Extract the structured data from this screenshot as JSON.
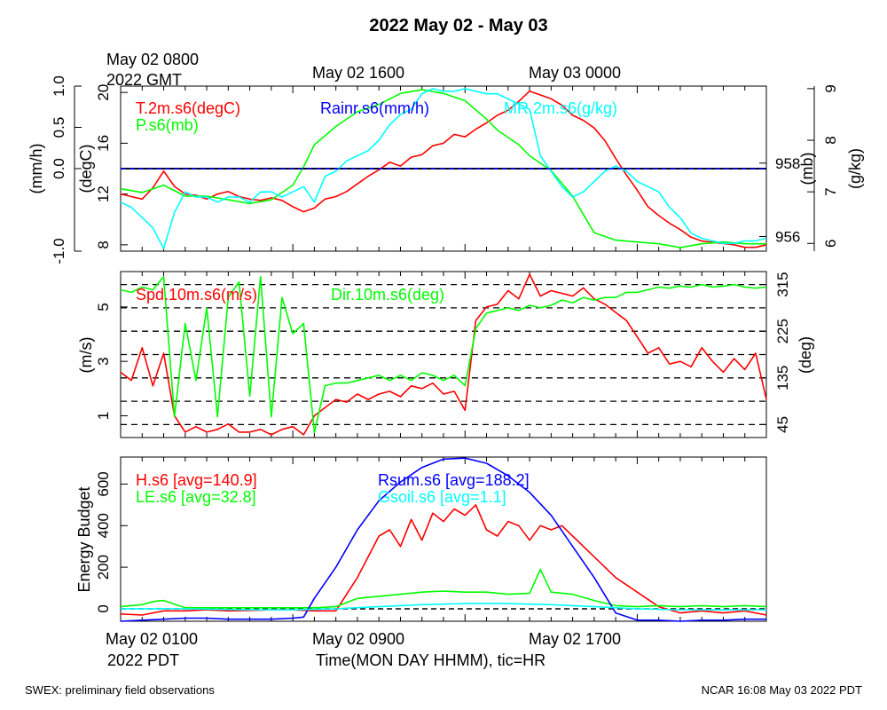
{
  "title": "2022 May 02 - May 03",
  "footer": {
    "left": "SWEX: preliminary field observations",
    "right": "NCAR 16:08 May 03 2022 PDT"
  },
  "time_axis": {
    "gmt_start_line1": "May 02 0800",
    "gmt_start_line2": "2022 GMT",
    "gmt_labels": [
      "May 02 1600",
      "May 03 0000"
    ],
    "pdt_labels": [
      "May 02 0100",
      "May 02 0900",
      "May 02 1700"
    ],
    "pdt_year": "2022 PDT",
    "xlabel": "Time(MON DAY HHMM), tic=HR"
  },
  "colors": {
    "red": "#ff0000",
    "green": "#00ff00",
    "blue": "#0000ff",
    "cyan": "#00ffff",
    "black": "#000000"
  },
  "chart_data": [
    {
      "type": "line",
      "panel": "top",
      "x_unit": "hours since May 02 0100 PDT",
      "xlim": [
        0,
        30
      ],
      "axes": {
        "rain": {
          "label": "(mm/h)",
          "lim": [
            -1.0,
            1.0
          ],
          "ticks": [
            "1.0",
            "0.5",
            "0.0",
            "-1.0"
          ],
          "tick_values": [
            1.0,
            0.5,
            0.0,
            -1.0
          ]
        },
        "temp": {
          "label": "(degC)",
          "lim": [
            7.5,
            20.5
          ],
          "ticks": [
            "20",
            "16",
            "12",
            "8"
          ],
          "tick_values": [
            20,
            16,
            12,
            8
          ]
        },
        "pres": {
          "label": "(mb)",
          "lim": [
            955.6,
            960.1
          ],
          "ticks": [
            "958",
            "956"
          ],
          "tick_values": [
            958,
            956
          ]
        },
        "mr": {
          "label": "(g/kg)",
          "lim": [
            5.85,
            9.05
          ],
          "ticks": [
            "9",
            "8",
            "7",
            "6"
          ],
          "tick_values": [
            9,
            8,
            7,
            6
          ]
        }
      },
      "series": [
        {
          "name": "T.2m.s6(degC)",
          "color": "red",
          "axis": "temp",
          "x": [
            0,
            0.5,
            1,
            1.5,
            2,
            2.5,
            3,
            3.5,
            4,
            4.5,
            5,
            5.5,
            6,
            6.5,
            7,
            7.5,
            8,
            8.5,
            9,
            9.5,
            10,
            10.5,
            11,
            11.5,
            12,
            12.5,
            13,
            13.5,
            14,
            14.5,
            15,
            15.5,
            16,
            16.5,
            17,
            17.5,
            18,
            18.5,
            19,
            19.5,
            20,
            20.5,
            21,
            21.5,
            22,
            22.5,
            23,
            23.5,
            24,
            24.5,
            25,
            25.5,
            26,
            26.5,
            27,
            27.5,
            28,
            28.5,
            29,
            29.5,
            30
          ],
          "y": [
            12,
            11.8,
            11.6,
            12.5,
            13.8,
            12.6,
            12,
            11.9,
            11.6,
            12,
            12.2,
            11.8,
            11.6,
            11.5,
            11.7,
            11.5,
            11.0,
            10.6,
            10.9,
            11.6,
            11.8,
            12.2,
            12.8,
            13.4,
            13.9,
            14.5,
            14.2,
            14.9,
            15.1,
            15.8,
            16.0,
            16.7,
            16.5,
            17.1,
            17.6,
            18.2,
            18.6,
            19.3,
            20.1,
            19.8,
            19.5,
            19.0,
            18.2,
            17.8,
            17.2,
            16.2,
            14.8,
            13.5,
            12.3,
            11.0,
            10.3,
            9.7,
            9.2,
            8.6,
            8.3,
            8.2,
            8.1,
            8.0,
            7.8,
            7.8,
            8.0
          ]
        },
        {
          "name": "P.s6(mb)",
          "color": "green",
          "axis": "pres",
          "x": [
            0,
            1,
            2,
            3,
            4,
            5,
            6,
            7,
            8,
            8.5,
            9,
            10,
            11,
            12,
            13,
            14,
            15,
            16,
            17,
            17.5,
            18,
            18.5,
            19,
            20,
            21,
            21.5,
            22,
            23,
            24,
            25,
            26,
            27,
            28,
            29,
            30
          ],
          "y": [
            957.3,
            957.2,
            957.4,
            957.1,
            957.1,
            957.0,
            956.9,
            957.0,
            957.4,
            957.9,
            958.5,
            959.0,
            959.4,
            959.6,
            959.9,
            960.0,
            959.9,
            959.7,
            959.2,
            958.9,
            958.7,
            958.5,
            958.2,
            957.8,
            957.1,
            956.6,
            956.1,
            955.9,
            955.85,
            955.8,
            955.7,
            955.8,
            955.85,
            955.8,
            955.8
          ]
        },
        {
          "name": "MR.2m.s6(g/kg)",
          "color": "cyan",
          "axis": "mr",
          "x": [
            0,
            0.5,
            1,
            1.5,
            2,
            2.5,
            3,
            3.5,
            4,
            4.5,
            5,
            5.5,
            6,
            6.5,
            7,
            7.5,
            8,
            8.5,
            9,
            9.5,
            10,
            10.5,
            11,
            11.5,
            12,
            12.5,
            13,
            13.5,
            14,
            14.5,
            15,
            15.5,
            16,
            16.5,
            17,
            17.5,
            18,
            18.5,
            19,
            19.5,
            20,
            20.5,
            21,
            21.5,
            22,
            22.5,
            23,
            23.5,
            24,
            24.5,
            25,
            25.5,
            26,
            26.5,
            27,
            27.5,
            28,
            28.5,
            29,
            29.5,
            30
          ],
          "y": [
            6.8,
            6.7,
            6.5,
            6.3,
            5.9,
            6.6,
            7.0,
            6.9,
            6.9,
            6.8,
            6.9,
            6.9,
            6.8,
            7.0,
            7.0,
            6.9,
            7.0,
            7.1,
            6.8,
            7.3,
            7.4,
            7.6,
            7.7,
            7.8,
            8.0,
            8.3,
            8.5,
            8.6,
            8.9,
            9.0,
            8.95,
            8.95,
            9.0,
            8.95,
            8.9,
            8.9,
            8.8,
            8.7,
            8.6,
            7.7,
            7.4,
            7.1,
            6.9,
            7.0,
            7.2,
            7.4,
            7.5,
            7.4,
            7.2,
            7.1,
            7.0,
            6.7,
            6.5,
            6.2,
            6.1,
            6.05,
            6.0,
            6.0,
            6.05,
            6.05,
            6.1
          ]
        },
        {
          "name": "Rainr.s6(mm/h)",
          "color": "blue",
          "axis": "rain",
          "x": [
            0,
            30
          ],
          "y": [
            0,
            0
          ]
        }
      ]
    },
    {
      "type": "line",
      "panel": "middle",
      "xlim": [
        0,
        30
      ],
      "axes": {
        "spd": {
          "label": "(m/s)",
          "lim": [
            0.2,
            6.3
          ],
          "ticks": [
            "5",
            "3",
            "1"
          ],
          "tick_values": [
            5,
            3,
            1
          ]
        },
        "dir": {
          "label": "(deg)",
          "lim": [
            20,
            340
          ],
          "ticks": [
            "315",
            "225",
            "135",
            "45"
          ],
          "tick_values": [
            315,
            225,
            135,
            45
          ]
        }
      },
      "dashed_levels_deg": [
        45,
        90,
        135,
        180,
        225,
        270,
        315
      ],
      "series": [
        {
          "name": "Spd.10m.s6(m/s)",
          "color": "red",
          "axis": "spd",
          "x": [
            0,
            0.5,
            1,
            1.5,
            2,
            2.5,
            3,
            3.5,
            4,
            4.5,
            5,
            5.5,
            6,
            6.5,
            7,
            7.5,
            8,
            8.5,
            9,
            9.5,
            10,
            10.5,
            11,
            11.5,
            12,
            12.5,
            13,
            13.5,
            14,
            14.5,
            15,
            15.5,
            16,
            16.5,
            17,
            17.5,
            18,
            18.5,
            19,
            19.5,
            20,
            20.5,
            21,
            21.5,
            22,
            22.5,
            23,
            23.5,
            24,
            24.5,
            25,
            25.5,
            26,
            26.5,
            27,
            27.5,
            28,
            28.5,
            29,
            29.5,
            30
          ],
          "y": [
            2.6,
            2.3,
            3.5,
            2.1,
            3.3,
            1.0,
            0.4,
            0.6,
            0.4,
            0.5,
            0.7,
            0.4,
            0.4,
            0.5,
            0.3,
            0.5,
            0.6,
            0.3,
            1.0,
            1.3,
            1.6,
            1.5,
            1.8,
            1.6,
            1.8,
            1.9,
            1.7,
            2.1,
            2.0,
            2.2,
            1.8,
            1.9,
            1.2,
            4.5,
            5.0,
            5.1,
            5.6,
            5.3,
            6.2,
            5.4,
            5.6,
            5.5,
            5.4,
            5.7,
            5.3,
            5.1,
            4.8,
            4.5,
            3.9,
            3.3,
            3.5,
            2.9,
            3.0,
            2.8,
            3.5,
            3.0,
            2.6,
            3.1,
            2.7,
            3.3,
            1.6
          ]
        },
        {
          "name": "Dir.10m.s6(deg)",
          "color": "green",
          "axis": "dir",
          "x": [
            0,
            0.5,
            1,
            1.5,
            2,
            2.5,
            3,
            3.5,
            4,
            4.5,
            5,
            5.5,
            6,
            6.5,
            7,
            7.5,
            8,
            8.5,
            9,
            9.5,
            10,
            10.5,
            11,
            11.5,
            12,
            12.5,
            13,
            13.5,
            14,
            14.5,
            15,
            15.5,
            16,
            16.5,
            17,
            17.5,
            18,
            18.5,
            19,
            19.5,
            20,
            20.5,
            21,
            21.5,
            22,
            22.5,
            23,
            23.5,
            24,
            24.5,
            25,
            25.5,
            26,
            26.5,
            27,
            27.5,
            28,
            28.5,
            29,
            29.5,
            30
          ],
          "y": [
            305,
            300,
            310,
            305,
            330,
            60,
            240,
            130,
            270,
            60,
            290,
            320,
            100,
            330,
            60,
            290,
            220,
            240,
            30,
            120,
            125,
            125,
            130,
            135,
            140,
            130,
            140,
            130,
            145,
            140,
            130,
            140,
            120,
            230,
            260,
            265,
            270,
            265,
            275,
            270,
            275,
            285,
            280,
            290,
            285,
            290,
            290,
            300,
            300,
            305,
            310,
            308,
            312,
            310,
            315,
            310,
            312,
            315,
            310,
            308,
            310
          ]
        }
      ]
    },
    {
      "type": "line",
      "panel": "bottom",
      "xlim": [
        0,
        30
      ],
      "axes": {
        "energy": {
          "label": "Energy Budget",
          "lim": [
            -60,
            730
          ],
          "ticks": [
            "600",
            "400",
            "200",
            "0"
          ],
          "tick_values": [
            600,
            400,
            200,
            0
          ]
        }
      },
      "series": [
        {
          "name": "H.s6",
          "avg_label": "[avg=140.9]",
          "color": "red",
          "axis": "energy",
          "x": [
            0,
            1,
            2,
            3,
            4,
            5,
            6,
            7,
            8,
            9,
            10,
            11,
            11.5,
            12,
            12.5,
            13,
            13.5,
            14,
            14.5,
            15,
            15.5,
            16,
            16.5,
            17,
            17.5,
            18,
            18.5,
            19,
            19.5,
            20,
            20.5,
            21,
            22,
            23,
            24,
            25,
            26,
            27,
            28,
            29,
            30
          ],
          "y": [
            -25,
            -30,
            -10,
            -10,
            -5,
            -10,
            -8,
            -5,
            -5,
            -10,
            -10,
            150,
            250,
            350,
            380,
            300,
            430,
            330,
            460,
            420,
            480,
            450,
            500,
            380,
            350,
            420,
            400,
            330,
            400,
            380,
            400,
            350,
            250,
            150,
            80,
            10,
            -20,
            -10,
            -20,
            -10,
            -30
          ]
        },
        {
          "name": "LE.s6",
          "avg_label": "[avg=32.8]",
          "color": "green",
          "axis": "energy",
          "x": [
            0,
            1,
            1.5,
            2,
            3,
            4,
            5,
            6,
            7,
            8,
            9,
            10,
            11,
            12,
            13,
            14,
            15,
            16,
            17,
            18,
            19,
            19.5,
            20,
            20.5,
            21,
            22,
            23,
            24,
            25,
            26,
            27,
            28,
            29,
            30
          ],
          "y": [
            10,
            20,
            35,
            40,
            5,
            5,
            5,
            5,
            5,
            5,
            5,
            10,
            50,
            60,
            70,
            80,
            85,
            80,
            80,
            70,
            75,
            190,
            80,
            75,
            70,
            40,
            15,
            10,
            15,
            10,
            15,
            10,
            15,
            10
          ]
        },
        {
          "name": "Rsum.s6",
          "avg_label": "[avg=188.2]",
          "color": "blue",
          "axis": "energy",
          "x": [
            0,
            1,
            2,
            3,
            4,
            5,
            6,
            7,
            8,
            8.5,
            9,
            10,
            11,
            12,
            13,
            14,
            15,
            16,
            17,
            18,
            19,
            20,
            21,
            22,
            23,
            24,
            25,
            26,
            27,
            28,
            29,
            30
          ],
          "y": [
            -60,
            -55,
            -50,
            -45,
            -45,
            -50,
            -50,
            -50,
            -45,
            -40,
            50,
            200,
            380,
            520,
            610,
            680,
            720,
            725,
            700,
            640,
            560,
            450,
            300,
            150,
            -20,
            -55,
            -55,
            -60,
            -55,
            -55,
            -50,
            -50
          ]
        },
        {
          "name": "Gsoil.s6",
          "avg_label": "[avg=1.1]",
          "color": "cyan",
          "axis": "energy",
          "x": [
            0,
            3,
            6,
            8,
            10,
            12,
            14,
            16,
            18,
            20,
            22,
            24,
            26,
            28,
            30
          ],
          "y": [
            0,
            0,
            -5,
            -5,
            0,
            10,
            20,
            25,
            25,
            20,
            10,
            0,
            -5,
            -5,
            -5
          ]
        }
      ]
    }
  ]
}
